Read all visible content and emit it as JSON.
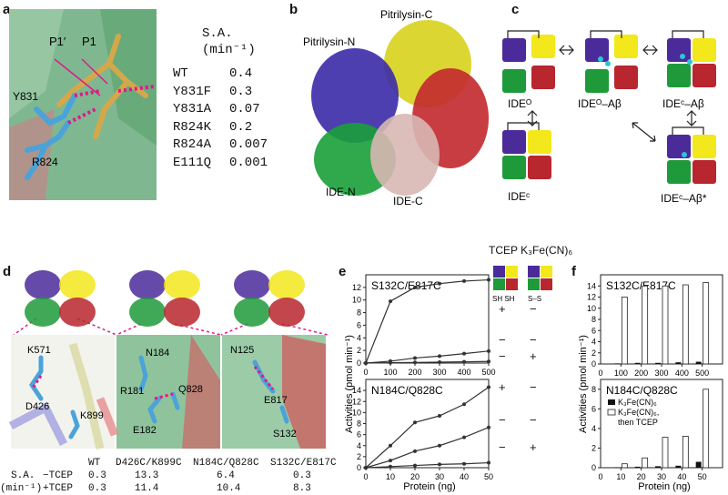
{
  "panels": {
    "a": {
      "letter": "a",
      "labels": [
        "P1′",
        "P1",
        "Y831",
        "R824"
      ],
      "sa_header": [
        "S.A.",
        "(min⁻¹)"
      ],
      "rows": [
        {
          "mutant": "WT",
          "sa": "0.4"
        },
        {
          "mutant": "Y831F",
          "sa": "0.3"
        },
        {
          "mutant": "Y831A",
          "sa": "0.07"
        },
        {
          "mutant": "R824K",
          "sa": "0.2"
        },
        {
          "mutant": "R824A",
          "sa": "0.007"
        },
        {
          "mutant": "E111Q",
          "sa": "0.001"
        }
      ]
    },
    "b": {
      "letter": "b",
      "labels": {
        "pit_c": "Pitrilysin-C",
        "pit_n": "Pitrilysin-N",
        "ide_n": "IDE-N",
        "ide_c": "IDE-C"
      }
    },
    "c": {
      "letter": "c",
      "states": {
        "ideo": "IDEᴼ",
        "ideo_ab": "IDEᴼ–Aβ",
        "idec_ab": "IDEᶜ–Aβ",
        "idec": "IDEᶜ",
        "idec_abstar": "IDEᶜ–Aβ*"
      },
      "colors": {
        "purple": "#4b2a9a",
        "yellow": "#f2e81c",
        "red": "#b8262e",
        "green": "#1f9a3a"
      }
    },
    "d": {
      "letter": "d",
      "residues": [
        "K571",
        "D426",
        "K899",
        "N184",
        "Q828",
        "R181",
        "E182",
        "N125",
        "E817",
        "S132"
      ],
      "table": {
        "header": [
          "WT",
          "D426C/K899C",
          "N184C/Q828C",
          "S132C/E817C"
        ],
        "row_label_top": "S.A.",
        "row_label_bottom": "(min⁻¹)",
        "rows": [
          {
            "cond": "−TCEP",
            "values": [
              "0.3",
              "13.3",
              "6.4",
              "0.3"
            ]
          },
          {
            "cond": "+TCEP",
            "values": [
              "0.3",
              "11.4",
              "10.4",
              "8.3"
            ]
          }
        ]
      }
    },
    "e": {
      "letter": "e",
      "header": "TCEP K₃Fe(CN)₆",
      "icon_labels": [
        "SH SH",
        "S–S"
      ],
      "signs_top": [
        [
          "+",
          "−"
        ],
        [
          "−",
          "−"
        ],
        [
          "−",
          "+"
        ]
      ],
      "signs_bottom": [
        [
          "+",
          "−"
        ],
        [
          "−",
          "−"
        ],
        [
          "−",
          "+"
        ]
      ],
      "ylabel": "Activities (pmol min⁻¹)",
      "xlabel": "Protein (ng)"
    },
    "f": {
      "letter": "f",
      "ylabel": "Activities (pmol min⁻¹)",
      "xlabel": "Protein (ng)",
      "legend": [
        "K₃Fe(CN)₆",
        "K₃Fe(CN)₆,",
        "then TCEP"
      ]
    }
  },
  "chart_data": [
    {
      "id": "e-top",
      "type": "line",
      "title": "S132C/E817C",
      "xlabel": "Protein (ng)",
      "ylabel": "Activities (pmol min⁻¹)",
      "xlim": [
        0,
        500
      ],
      "ylim": [
        0,
        14
      ],
      "xticks": [
        0,
        100,
        200,
        300,
        400,
        500
      ],
      "yticks": [
        0,
        2,
        4,
        6,
        8,
        10,
        12
      ],
      "x": [
        0,
        100,
        200,
        300,
        400,
        500
      ],
      "series": [
        {
          "values": [
            0,
            9.8,
            12.0,
            12.6,
            13.0,
            13.2
          ]
        },
        {
          "values": [
            0,
            0.3,
            0.8,
            1.1,
            1.5,
            1.9
          ]
        },
        {
          "values": [
            0,
            0.05,
            0.1,
            0.15,
            0.2,
            0.25
          ]
        }
      ]
    },
    {
      "id": "e-bottom",
      "type": "line",
      "title": "N184C/Q828C",
      "xlabel": "Protein (ng)",
      "ylabel": "Activities (pmol min⁻¹)",
      "xlim": [
        0,
        50
      ],
      "ylim": [
        0,
        16
      ],
      "xticks": [
        0,
        10,
        20,
        30,
        40,
        50
      ],
      "yticks": [
        0,
        2,
        4,
        6,
        8,
        10,
        12,
        14
      ],
      "x": [
        0,
        10,
        20,
        30,
        40,
        50
      ],
      "series": [
        {
          "values": [
            0,
            4.0,
            8.2,
            9.4,
            11.5,
            14.6
          ]
        },
        {
          "values": [
            0,
            1.3,
            3.0,
            4.0,
            5.5,
            7.3
          ]
        },
        {
          "values": [
            0,
            0.2,
            0.4,
            0.6,
            0.7,
            0.9
          ]
        }
      ]
    },
    {
      "id": "f-top",
      "type": "bar",
      "title": "S132C/E817C",
      "xlabel": "Protein (ng)",
      "ylabel": "Activities (pmol min⁻¹)",
      "ylim": [
        0,
        16
      ],
      "yticks": [
        0,
        2,
        4,
        6,
        8,
        10,
        12,
        14
      ],
      "categories": [
        "100",
        "200",
        "300",
        "400",
        "500"
      ],
      "series": [
        {
          "name": "K₃Fe(CN)₆",
          "values": [
            0.1,
            0.2,
            0.2,
            0.3,
            0.4
          ]
        },
        {
          "name": "K₃Fe(CN)₆, then TCEP",
          "values": [
            12.0,
            14.0,
            14.0,
            14.2,
            14.6
          ]
        }
      ]
    },
    {
      "id": "f-bottom",
      "type": "bar",
      "title": "N184C/Q828C",
      "xlabel": "Protein (ng)",
      "ylabel": "Activities (pmol min⁻¹)",
      "ylim": [
        0,
        9
      ],
      "yticks": [
        0,
        2,
        4,
        6,
        8
      ],
      "categories": [
        "10",
        "20",
        "30",
        "40",
        "50"
      ],
      "series": [
        {
          "name": "K₃Fe(CN)₆",
          "values": [
            0.05,
            0.1,
            0.15,
            0.2,
            0.6
          ]
        },
        {
          "name": "K₃Fe(CN)₆, then TCEP",
          "values": [
            0.4,
            1.0,
            3.1,
            3.2,
            8.0
          ]
        }
      ]
    }
  ]
}
